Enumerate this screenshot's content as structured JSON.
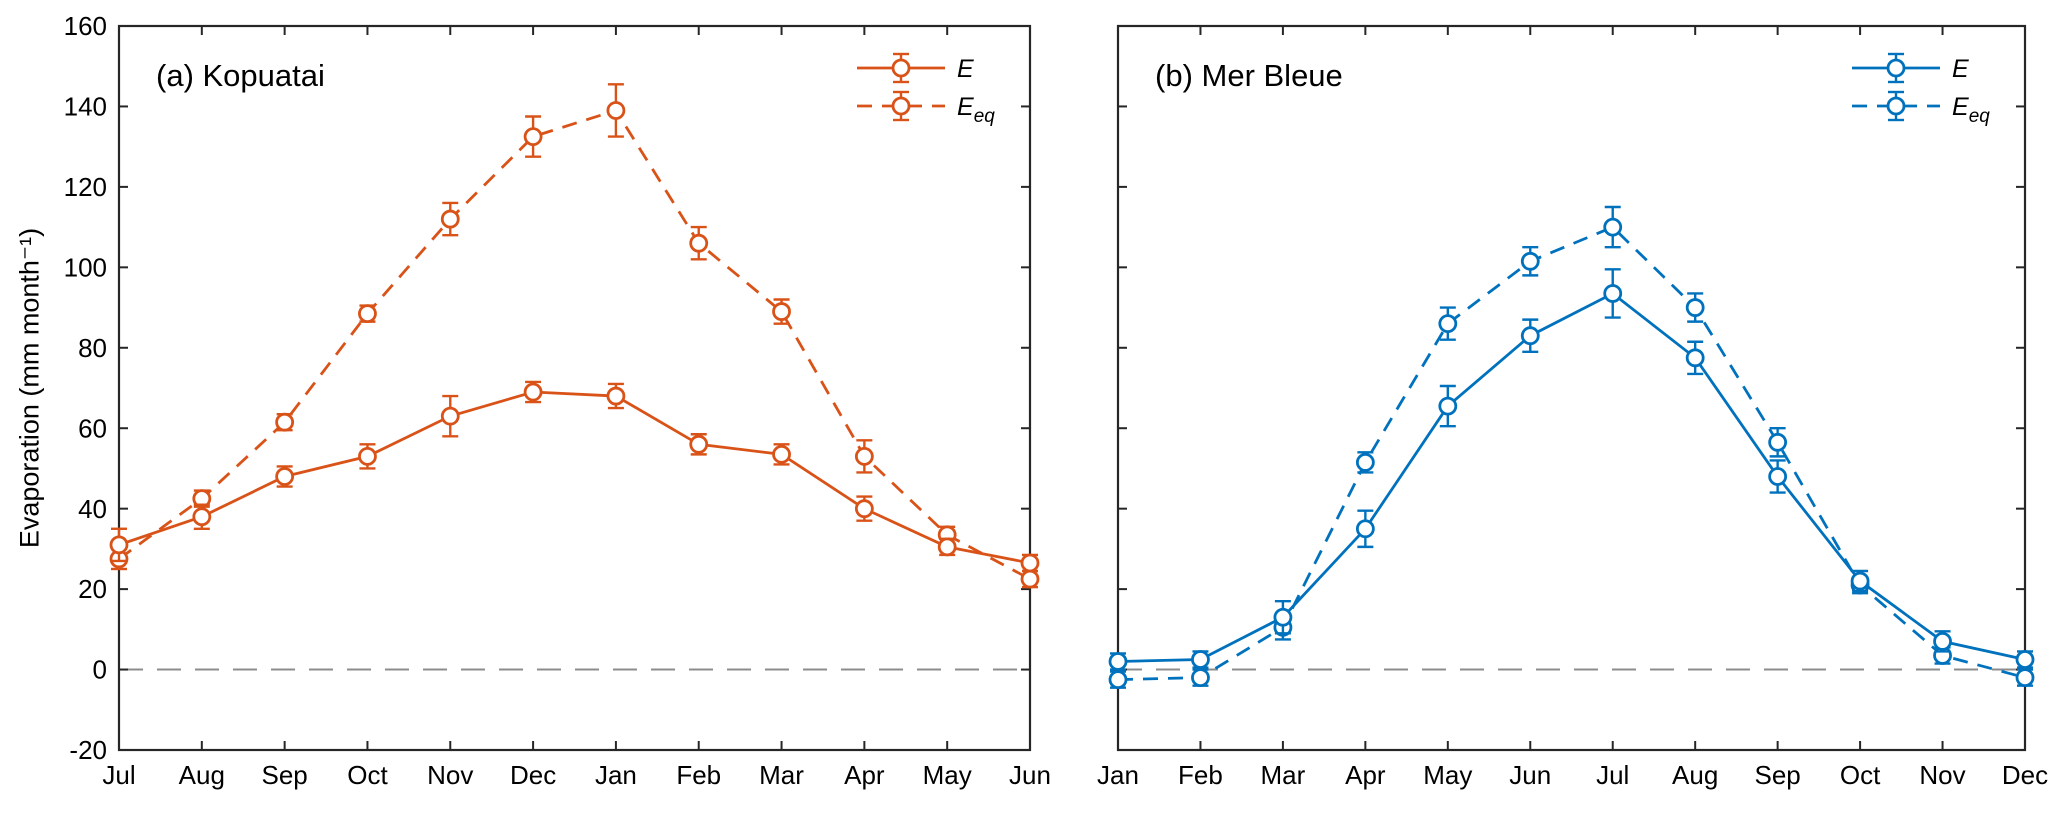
{
  "chart_data": {
    "type": "line",
    "ylabel": "Evaporation (mm month⁻¹)",
    "ylim": [
      -20,
      160
    ],
    "yticks": [
      -20,
      0,
      20,
      40,
      60,
      80,
      100,
      120,
      140,
      160
    ],
    "grid": false,
    "zero_line": true,
    "legend_position": "top-right-inside",
    "colors": {
      "zero_line": "#8C8C8C",
      "axis": "#262626",
      "text": "#000000",
      "marker_fill": "#FFFFFF"
    },
    "panels": [
      {
        "id": "a",
        "title": "(a) Kopuatai",
        "color": "#D95319",
        "months": [
          "Jul",
          "Aug",
          "Sep",
          "Oct",
          "Nov",
          "Dec",
          "Jan",
          "Feb",
          "Mar",
          "Apr",
          "May",
          "Jun"
        ],
        "series": [
          {
            "name": "E",
            "label": "E",
            "label_subscript": "",
            "line": "solid",
            "values": [
              31,
              38,
              48,
              53,
              63,
              69,
              68,
              56,
              53.5,
              40,
              30.5,
              26.5
            ],
            "errors": [
              4,
              3,
              2.5,
              3,
              5,
              2.5,
              3,
              2.5,
              2.5,
              3,
              2,
              2
            ]
          },
          {
            "name": "Eeq",
            "label": "E",
            "label_subscript": "eq",
            "line": "dashed",
            "values": [
              27.5,
              42.5,
              61.5,
              88.5,
              112,
              132.5,
              139,
              106,
              89,
              53,
              33.5,
              22.5
            ],
            "errors": [
              2.5,
              2,
              2,
              2,
              4,
              5,
              6.5,
              4,
              3,
              4,
              2,
              2
            ]
          }
        ]
      },
      {
        "id": "b",
        "title": "(b) Mer Bleue",
        "color": "#0072BD",
        "months": [
          "Jan",
          "Feb",
          "Mar",
          "Apr",
          "May",
          "Jun",
          "Jul",
          "Aug",
          "Sep",
          "Oct",
          "Nov",
          "Dec"
        ],
        "series": [
          {
            "name": "E",
            "label": "E",
            "label_subscript": "",
            "line": "solid",
            "values": [
              2,
              2.5,
              13,
              35,
              65.5,
              83,
              93.5,
              77.5,
              48,
              22,
              7,
              2.5
            ],
            "errors": [
              2,
              2,
              4,
              4.5,
              5,
              4,
              6,
              4,
              4,
              2.5,
              2.5,
              2
            ]
          },
          {
            "name": "Eeq",
            "label": "E",
            "label_subscript": "eq",
            "line": "dashed",
            "values": [
              -2.5,
              -2,
              10.5,
              51.5,
              86,
              101.5,
              110,
              90,
              56.5,
              21,
              3.5,
              -2
            ],
            "errors": [
              2,
              2,
              3,
              2.5,
              4,
              3.5,
              5,
              3.5,
              3.5,
              2,
              2,
              2
            ]
          }
        ]
      }
    ]
  }
}
